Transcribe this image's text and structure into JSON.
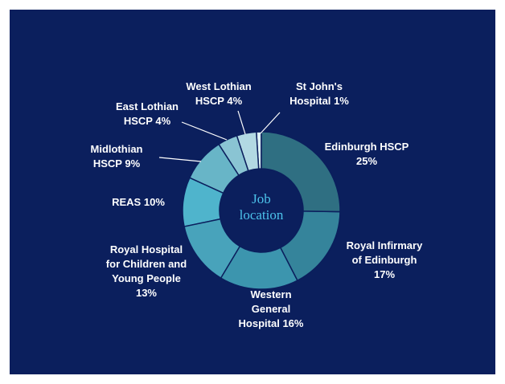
{
  "chart_data": {
    "type": "donut",
    "center_label": "Job\nlocation",
    "categories": [
      "Edinburgh HSCP",
      "Royal Infirmary\nof Edinburgh",
      "Western\nGeneral\nHospital",
      "Royal Hospital\nfor Children and\nYoung People",
      "REAS",
      "Midlothian\nHSCP",
      "East Lothian\nHSCP",
      "West Lothian\nHSCP",
      "St John's\nHospital"
    ],
    "values": [
      25,
      17,
      16,
      13,
      10,
      9,
      4,
      4,
      1
    ],
    "value_labels": [
      "25%",
      "17%",
      "16%",
      "13%",
      "10%",
      "9%",
      "4%",
      "4%",
      "1%"
    ],
    "colors": [
      "#2f6f82",
      "#35849b",
      "#3c95ae",
      "#48a3bb",
      "#4fb4cc",
      "#68b5c7",
      "#8ac4d3",
      "#b2d9e3",
      "#dcf0f4"
    ]
  }
}
